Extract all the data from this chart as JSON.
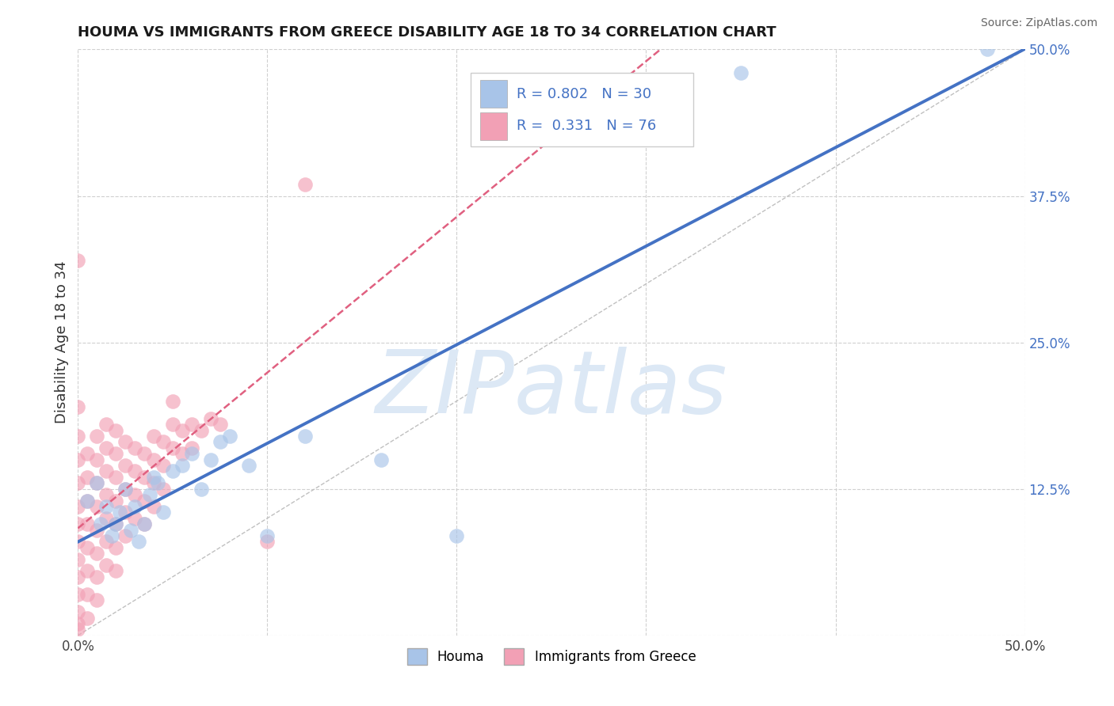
{
  "title": "HOUMA VS IMMIGRANTS FROM GREECE DISABILITY AGE 18 TO 34 CORRELATION CHART",
  "source_text": "Source: ZipAtlas.com",
  "ylabel": "Disability Age 18 to 34",
  "xlim": [
    0.0,
    0.5
  ],
  "ylim": [
    0.0,
    0.5
  ],
  "houma_R": 0.802,
  "houma_N": 30,
  "greece_R": 0.331,
  "greece_N": 76,
  "houma_color": "#a8c4e8",
  "greece_color": "#f2a0b5",
  "houma_line_color": "#4472c4",
  "greece_line_color": "#e06080",
  "watermark": "ZIPatlas",
  "watermark_color": "#dce8f5",
  "grid_color": "#d0d0d0",
  "houma_points": [
    [
      0.005,
      0.115
    ],
    [
      0.01,
      0.13
    ],
    [
      0.012,
      0.095
    ],
    [
      0.015,
      0.11
    ],
    [
      0.018,
      0.085
    ],
    [
      0.02,
      0.095
    ],
    [
      0.022,
      0.105
    ],
    [
      0.025,
      0.125
    ],
    [
      0.028,
      0.09
    ],
    [
      0.03,
      0.11
    ],
    [
      0.032,
      0.08
    ],
    [
      0.035,
      0.095
    ],
    [
      0.038,
      0.12
    ],
    [
      0.04,
      0.135
    ],
    [
      0.042,
      0.13
    ],
    [
      0.045,
      0.105
    ],
    [
      0.05,
      0.14
    ],
    [
      0.055,
      0.145
    ],
    [
      0.06,
      0.155
    ],
    [
      0.065,
      0.125
    ],
    [
      0.07,
      0.15
    ],
    [
      0.075,
      0.165
    ],
    [
      0.08,
      0.17
    ],
    [
      0.09,
      0.145
    ],
    [
      0.1,
      0.085
    ],
    [
      0.12,
      0.17
    ],
    [
      0.16,
      0.15
    ],
    [
      0.2,
      0.085
    ],
    [
      0.35,
      0.48
    ],
    [
      0.48,
      0.5
    ]
  ],
  "greece_points": [
    [
      0.0,
      0.32
    ],
    [
      0.0,
      0.195
    ],
    [
      0.0,
      0.17
    ],
    [
      0.0,
      0.15
    ],
    [
      0.0,
      0.13
    ],
    [
      0.0,
      0.11
    ],
    [
      0.0,
      0.095
    ],
    [
      0.0,
      0.08
    ],
    [
      0.0,
      0.065
    ],
    [
      0.0,
      0.05
    ],
    [
      0.0,
      0.035
    ],
    [
      0.0,
      0.02
    ],
    [
      0.0,
      0.01
    ],
    [
      0.0,
      0.005
    ],
    [
      0.005,
      0.155
    ],
    [
      0.005,
      0.135
    ],
    [
      0.005,
      0.115
    ],
    [
      0.005,
      0.095
    ],
    [
      0.005,
      0.075
    ],
    [
      0.005,
      0.055
    ],
    [
      0.005,
      0.035
    ],
    [
      0.005,
      0.015
    ],
    [
      0.01,
      0.17
    ],
    [
      0.01,
      0.15
    ],
    [
      0.01,
      0.13
    ],
    [
      0.01,
      0.11
    ],
    [
      0.01,
      0.09
    ],
    [
      0.01,
      0.07
    ],
    [
      0.01,
      0.05
    ],
    [
      0.01,
      0.03
    ],
    [
      0.015,
      0.18
    ],
    [
      0.015,
      0.16
    ],
    [
      0.015,
      0.14
    ],
    [
      0.015,
      0.12
    ],
    [
      0.015,
      0.1
    ],
    [
      0.015,
      0.08
    ],
    [
      0.015,
      0.06
    ],
    [
      0.02,
      0.175
    ],
    [
      0.02,
      0.155
    ],
    [
      0.02,
      0.135
    ],
    [
      0.02,
      0.115
    ],
    [
      0.02,
      0.095
    ],
    [
      0.02,
      0.075
    ],
    [
      0.02,
      0.055
    ],
    [
      0.025,
      0.165
    ],
    [
      0.025,
      0.145
    ],
    [
      0.025,
      0.125
    ],
    [
      0.025,
      0.105
    ],
    [
      0.025,
      0.085
    ],
    [
      0.03,
      0.16
    ],
    [
      0.03,
      0.14
    ],
    [
      0.03,
      0.12
    ],
    [
      0.03,
      0.1
    ],
    [
      0.035,
      0.155
    ],
    [
      0.035,
      0.135
    ],
    [
      0.035,
      0.115
    ],
    [
      0.035,
      0.095
    ],
    [
      0.04,
      0.17
    ],
    [
      0.04,
      0.15
    ],
    [
      0.04,
      0.13
    ],
    [
      0.04,
      0.11
    ],
    [
      0.045,
      0.165
    ],
    [
      0.045,
      0.145
    ],
    [
      0.045,
      0.125
    ],
    [
      0.05,
      0.2
    ],
    [
      0.05,
      0.18
    ],
    [
      0.05,
      0.16
    ],
    [
      0.055,
      0.175
    ],
    [
      0.055,
      0.155
    ],
    [
      0.06,
      0.18
    ],
    [
      0.06,
      0.16
    ],
    [
      0.065,
      0.175
    ],
    [
      0.07,
      0.185
    ],
    [
      0.075,
      0.18
    ],
    [
      0.1,
      0.08
    ],
    [
      0.12,
      0.385
    ]
  ]
}
